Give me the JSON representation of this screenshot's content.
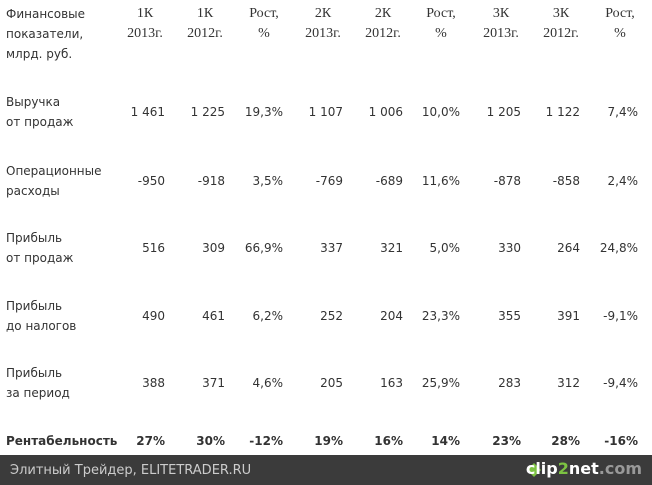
{
  "table": {
    "header": [
      [
        "Финансовые",
        "показатели,",
        "млрд. руб."
      ],
      [
        "1К",
        "2013г."
      ],
      [
        "1К",
        "2012г."
      ],
      [
        "Рост,",
        "%"
      ],
      [
        "2К",
        "2013г."
      ],
      [
        "2К",
        "2012г."
      ],
      [
        "Рост,",
        "%"
      ],
      [
        "3К",
        "2013г."
      ],
      [
        "3К",
        "2012г."
      ],
      [
        "Рост,",
        "%"
      ]
    ],
    "rows": [
      {
        "label": [
          "Выручка",
          "от продаж"
        ],
        "values": [
          "1 461",
          "1 225",
          "19,3%",
          "1 107",
          "1 006",
          "10,0%",
          "1 205",
          "1 122",
          "7,4%"
        ]
      },
      {
        "label": [
          "Операционные",
          "расходы"
        ],
        "values": [
          "-950",
          "-918",
          "3,5%",
          "-769",
          "-689",
          "11,6%",
          "-878",
          "-858",
          "2,4%"
        ]
      },
      {
        "label": [
          "Прибыль",
          "от продаж"
        ],
        "values": [
          "516",
          "309",
          "66,9%",
          "337",
          "321",
          "5,0%",
          "330",
          "264",
          "24,8%"
        ]
      },
      {
        "label": [
          "Прибыль",
          "до налогов"
        ],
        "values": [
          "490",
          "461",
          "6,2%",
          "252",
          "204",
          "23,3%",
          "355",
          "391",
          "-9,1%"
        ]
      },
      {
        "label": [
          "Прибыль",
          "за период"
        ],
        "values": [
          "388",
          "371",
          "4,6%",
          "205",
          "163",
          "25,9%",
          "283",
          "312",
          "-9,4%"
        ]
      },
      {
        "label": [
          "Рентабельность"
        ],
        "values": [
          "27%",
          "30%",
          "-12%",
          "19%",
          "16%",
          "14%",
          "23%",
          "28%",
          "-16%"
        ]
      }
    ]
  },
  "footer": {
    "text": "Элитный Трейдер, ELITETRADER.RU",
    "logo": [
      "clip",
      "2",
      "net",
      ".com"
    ]
  }
}
